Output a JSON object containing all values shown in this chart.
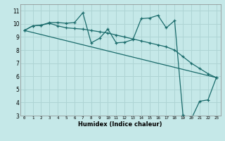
{
  "xlabel": "Humidex (Indice chaleur)",
  "bg_color": "#c5e8e8",
  "grid_color": "#aed4d4",
  "line_color": "#1a6b6b",
  "xlim": [
    -0.5,
    23.5
  ],
  "ylim": [
    3,
    11.5
  ],
  "yticks": [
    3,
    4,
    5,
    6,
    7,
    8,
    9,
    10,
    11
  ],
  "xticks": [
    0,
    1,
    2,
    3,
    4,
    5,
    6,
    7,
    8,
    9,
    10,
    11,
    12,
    13,
    14,
    15,
    16,
    17,
    18,
    19,
    20,
    21,
    22,
    23
  ],
  "series1_x": [
    0,
    1,
    2,
    3,
    4,
    5,
    6,
    7,
    8,
    9,
    10,
    11,
    12,
    13,
    14,
    15,
    16,
    17,
    18,
    19,
    20,
    21,
    22,
    23
  ],
  "series1_y": [
    9.5,
    9.85,
    9.9,
    10.1,
    10.1,
    10.05,
    10.1,
    10.85,
    8.55,
    8.9,
    9.6,
    8.55,
    8.6,
    8.8,
    10.4,
    10.45,
    10.65,
    9.7,
    10.25,
    3.05,
    2.75,
    4.1,
    4.2,
    5.9
  ],
  "series2_x": [
    0,
    1,
    2,
    3,
    4,
    5,
    6,
    7,
    8,
    9,
    10,
    11,
    12,
    13,
    14,
    15,
    16,
    17,
    18,
    19,
    20,
    21,
    22,
    23
  ],
  "series2_y": [
    9.5,
    9.85,
    9.9,
    10.05,
    9.85,
    9.7,
    9.65,
    9.6,
    9.5,
    9.4,
    9.3,
    9.15,
    9.0,
    8.85,
    8.7,
    8.55,
    8.4,
    8.25,
    8.0,
    7.5,
    7.0,
    6.6,
    6.2,
    5.9
  ],
  "series3_x": [
    0,
    23
  ],
  "series3_y": [
    9.5,
    5.9
  ]
}
